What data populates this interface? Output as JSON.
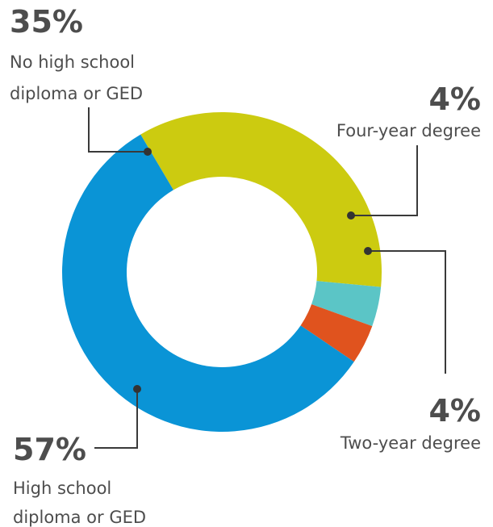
{
  "chart_data": {
    "type": "pie",
    "variant": "donut",
    "categories": [
      "No high school diploma or GED",
      "Four-year degree",
      "Two-year degree",
      "High school diploma or GED"
    ],
    "values": [
      35,
      4,
      4,
      57
    ],
    "unit": "%",
    "colors": [
      "#cccb10",
      "#5bc5c6",
      "#e0531e",
      "#0a94d6"
    ],
    "legend": "none",
    "labels": [
      {
        "pct": "35%",
        "line1": "No high school",
        "line2": "diploma or GED"
      },
      {
        "pct": "4%",
        "line1": "Four-year degree",
        "line2": ""
      },
      {
        "pct": "4%",
        "line1": "Two-year degree",
        "line2": ""
      },
      {
        "pct": "57%",
        "line1": "High school",
        "line2": "diploma or GED"
      }
    ]
  }
}
